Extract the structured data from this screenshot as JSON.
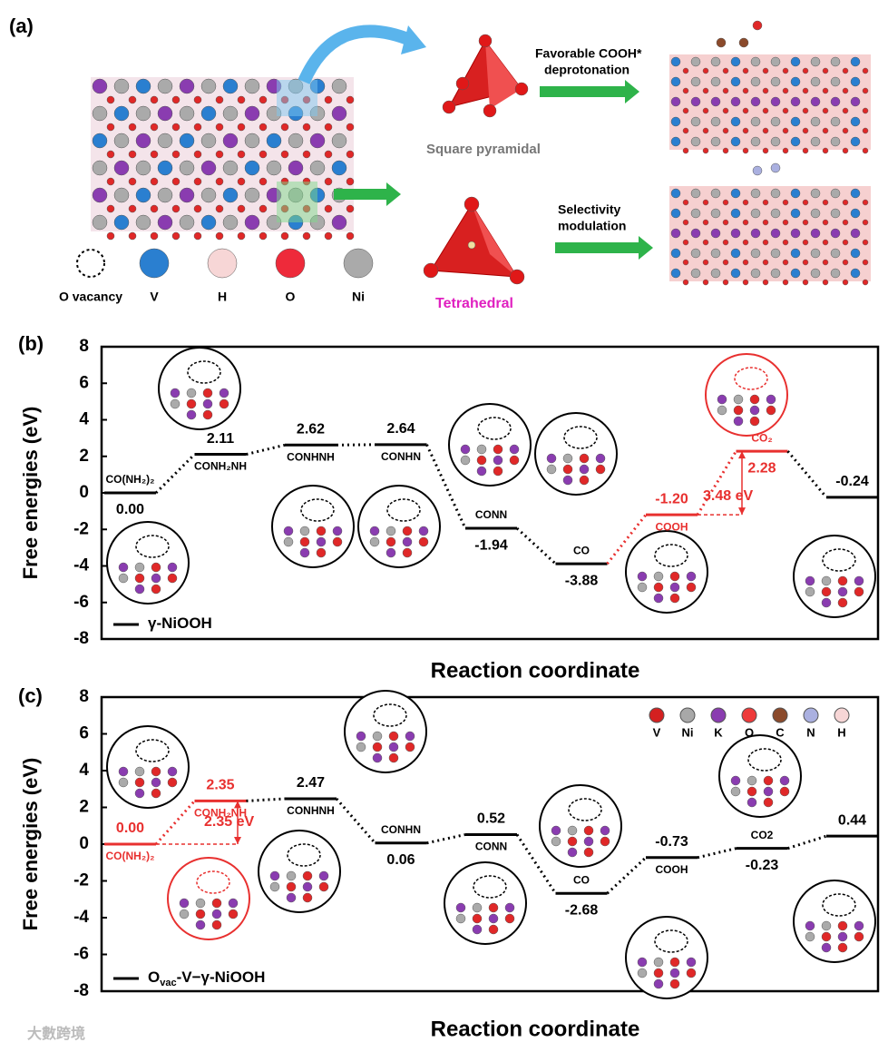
{
  "panel_a": {
    "label": "(a)",
    "arrow_top": [
      "Favorable COOH*",
      "deprotonation"
    ],
    "shape_top": "Square pyramidal",
    "arrow_bottom": [
      "Selectivity",
      "modulation"
    ],
    "shape_bottom": "Tetrahedral",
    "legend": [
      "O vacancy",
      "V",
      "H",
      "O",
      "Ni"
    ]
  },
  "chart_data": [
    {
      "type": "energy",
      "panel": "(b)",
      "categories": [
        "CO(NH₂)₂",
        "CONH₂NH",
        "CONHNH",
        "CONHN",
        "CONN",
        "CO",
        "COOH",
        "CO₂",
        null
      ],
      "values": [
        0,
        2.11,
        2.62,
        2.64,
        -1.94,
        -3.88,
        -1.2,
        2.28,
        -0.24
      ],
      "value_labels": [
        "0.00",
        "2.11",
        "2.62",
        "2.64",
        "-1.94",
        "-3.88",
        "-1.20",
        "2.28",
        "-0.24"
      ],
      "colors": [
        "#000",
        "#000",
        "#000",
        "#000",
        "#000",
        "#000",
        "#e8302f",
        "#e8302f",
        "#000"
      ],
      "ylim": [
        -8,
        8
      ],
      "yticks": [
        -8,
        -6,
        -4,
        -2,
        0,
        2,
        4,
        6,
        8
      ],
      "ylabel": "Free energies (eV)",
      "xlabel": "Reaction coordinate",
      "legend": [
        "γ-NiOOH"
      ],
      "annotation": "3.48 eV"
    },
    {
      "type": "energy",
      "panel": "(c)",
      "categories": [
        "CO(NH₂)₂",
        "CONH₂NH",
        "CONHNH",
        "CONHN",
        "CONN",
        "CO",
        "COOH",
        "CO2",
        null
      ],
      "values": [
        0,
        2.35,
        2.47,
        0.06,
        0.52,
        -2.68,
        -0.73,
        -0.23,
        0.44
      ],
      "value_labels": [
        "0.00",
        "2.35",
        "2.47",
        "0.06",
        "0.52",
        "-2.68",
        "-0.73",
        "-0.23",
        "0.44"
      ],
      "colors": [
        "#e8302f",
        "#e8302f",
        "#000",
        "#000",
        "#000",
        "#000",
        "#000",
        "#000",
        "#000"
      ],
      "ylim": [
        -8,
        8
      ],
      "yticks": [
        -8,
        -6,
        -4,
        -2,
        0,
        2,
        4,
        6,
        8
      ],
      "ylabel": "Free energies (eV)",
      "xlabel": "Reaction coordinate",
      "legend": [
        "O",
        "vac",
        "-V−γ-NiOOH"
      ],
      "annotation": "2.35 eV",
      "elements": {
        "names": [
          "V",
          "Ni",
          "K",
          "O",
          "C",
          "N",
          "H"
        ],
        "colors": [
          "#d42020",
          "#a8a8a8",
          "#8a3cb0",
          "#ee3a3a",
          "#8b4a2b",
          "#aab0e0",
          "#f7d6d6"
        ]
      }
    }
  ],
  "watermark": "大數跨境"
}
